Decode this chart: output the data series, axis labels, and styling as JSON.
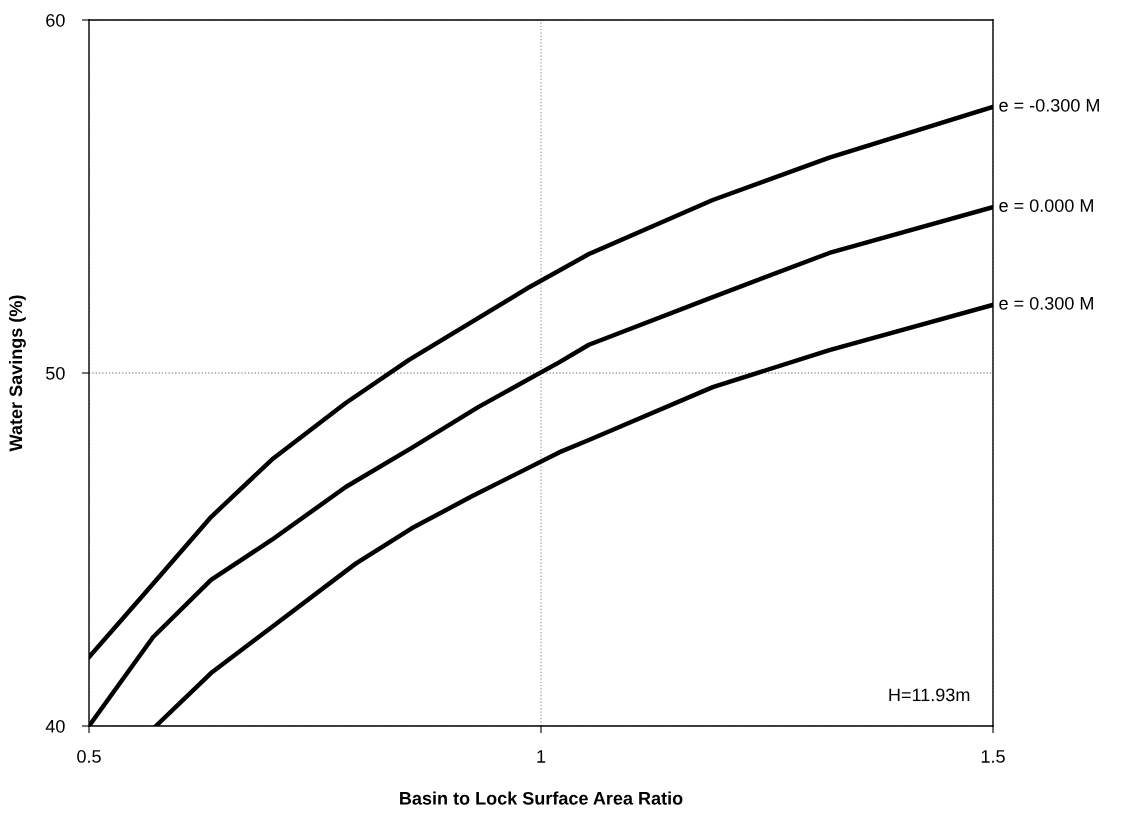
{
  "chart_data": {
    "type": "line",
    "xlabel": "Basin to Lock Surface Area Ratio",
    "ylabel": "Water Savings (%)",
    "xlim": [
      0.5,
      1.5
    ],
    "xticks": [
      0.5,
      1,
      1.5
    ],
    "ylim": [
      40,
      60
    ],
    "yticks": [
      40,
      50,
      60
    ],
    "grid": true,
    "legend": false,
    "marker": "none",
    "line_style": "solid",
    "annotations": [
      "H=11.93m"
    ],
    "series": [
      {
        "name": "e = -0.300 M",
        "color": "#000000",
        "x": [
          0.5,
          0.562,
          0.635,
          0.702,
          0.784,
          0.854,
          0.987,
          1.053,
          1.19,
          1.319,
          1.5
        ],
        "values": [
          41.95,
          43.77,
          45.92,
          47.54,
          49.15,
          50.37,
          52.43,
          53.37,
          54.9,
          56.1,
          57.54
        ]
      },
      {
        "name": "e = 0.000 M",
        "color": "#000000",
        "x": [
          0.5,
          0.571,
          0.635,
          0.702,
          0.784,
          0.857,
          0.931,
          1.02,
          1.053,
          1.19,
          1.319,
          1.5
        ],
        "values": [
          40.0,
          42.52,
          44.14,
          45.27,
          46.77,
          47.88,
          49.04,
          50.3,
          50.8,
          52.15,
          53.4,
          54.7
        ]
      },
      {
        "name": "e = 0.300 M",
        "color": "#000000",
        "x": [
          0.574,
          0.635,
          0.702,
          0.795,
          0.857,
          0.923,
          1.02,
          1.053,
          1.19,
          1.319,
          1.5
        ],
        "values": [
          40.0,
          41.5,
          42.8,
          44.6,
          45.6,
          46.5,
          47.75,
          48.1,
          49.6,
          50.65,
          51.93
        ]
      }
    ]
  }
}
